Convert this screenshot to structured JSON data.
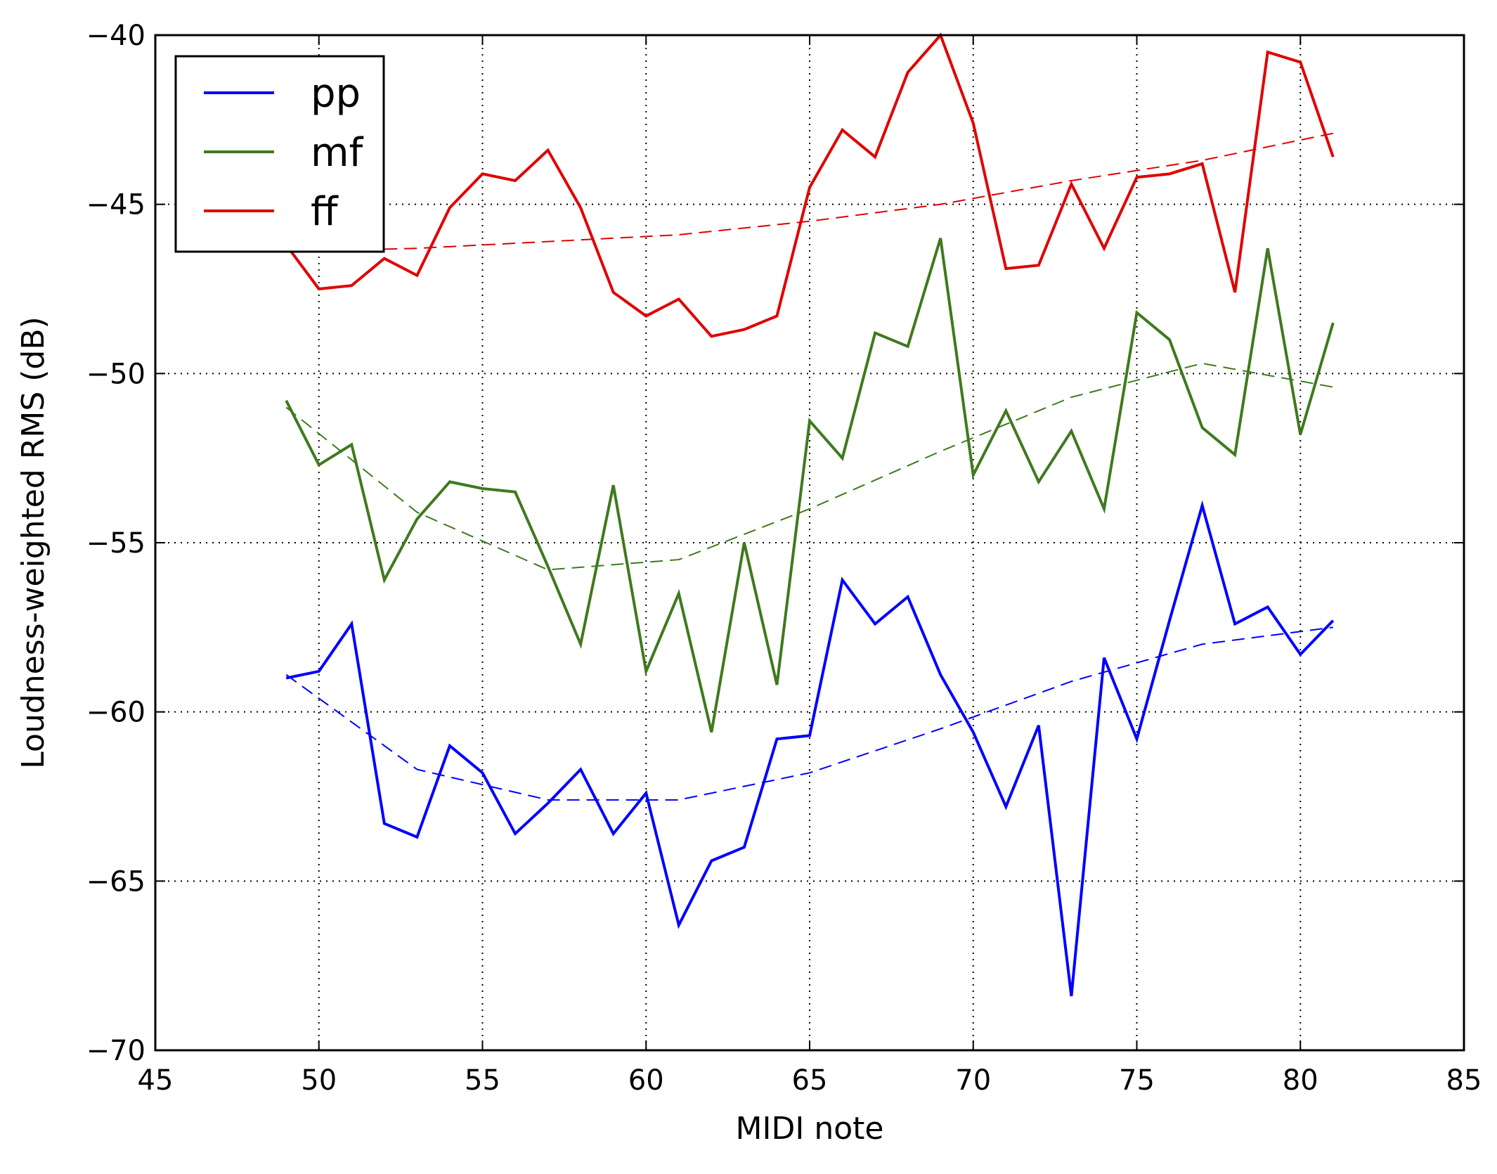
{
  "chart_data": {
    "type": "line",
    "xlabel": "MIDI note",
    "ylabel": "Loudness-weighted RMS (dB)",
    "xlim": [
      45,
      85
    ],
    "ylim": [
      -70,
      -40
    ],
    "xticks": [
      45,
      50,
      55,
      60,
      65,
      70,
      75,
      80,
      85
    ],
    "yticks": [
      -40,
      -45,
      -50,
      -55,
      -60,
      -65,
      -70
    ],
    "xtick_labels": [
      "45",
      "50",
      "55",
      "60",
      "65",
      "70",
      "75",
      "80",
      "85"
    ],
    "ytick_labels": [
      "−40",
      "−45",
      "−50",
      "−55",
      "−60",
      "−65",
      "−70"
    ],
    "grid": true,
    "legend_position": "top-left",
    "x": [
      49,
      50,
      51,
      52,
      53,
      54,
      55,
      56,
      57,
      58,
      59,
      60,
      61,
      62,
      63,
      64,
      65,
      66,
      67,
      68,
      69,
      70,
      71,
      72,
      73,
      74,
      75,
      76,
      77,
      78,
      79,
      80,
      81
    ],
    "series": [
      {
        "name": "pp",
        "color": "#0000ff",
        "values": [
          -59.0,
          -58.8,
          -57.4,
          -63.3,
          -63.7,
          -61.0,
          -61.8,
          -63.6,
          -62.7,
          -61.7,
          -63.6,
          -62.4,
          -66.3,
          -64.4,
          -64.0,
          -60.8,
          -60.7,
          -56.1,
          -57.4,
          -56.6,
          -58.9,
          -60.6,
          -62.8,
          -60.4,
          -68.4,
          -58.4,
          -60.8,
          -57.3,
          -53.9,
          -57.4,
          -56.9,
          -58.3,
          -57.3
        ]
      },
      {
        "name": "mf",
        "color": "#3e7a1e",
        "values": [
          -50.8,
          -52.7,
          -52.1,
          -56.1,
          -54.3,
          -53.2,
          -53.4,
          -53.5,
          -55.7,
          -58.0,
          -53.3,
          -58.8,
          -56.5,
          -60.6,
          -55.0,
          -59.2,
          -51.4,
          -52.5,
          -48.8,
          -49.2,
          -46.0,
          -53.0,
          -51.1,
          -53.2,
          -51.7,
          -54.0,
          -48.2,
          -49.0,
          -51.6,
          -52.4,
          -46.3,
          -51.8,
          -48.5
        ]
      },
      {
        "name": "ff",
        "color": "#e00000",
        "values": [
          -46.2,
          -47.5,
          -47.4,
          -46.6,
          -47.1,
          -45.1,
          -44.1,
          -44.3,
          -43.4,
          -45.1,
          -47.6,
          -48.3,
          -47.8,
          -48.9,
          -48.7,
          -48.3,
          -44.5,
          -42.8,
          -43.6,
          -41.1,
          -40.0,
          -42.6,
          -46.9,
          -46.8,
          -44.4,
          -46.3,
          -44.2,
          -44.1,
          -43.8,
          -47.6,
          -40.5,
          -40.8,
          -43.6
        ]
      }
    ],
    "trend_lines": [
      {
        "series": "pp",
        "color": "#0000ff",
        "x": [
          49,
          53,
          57,
          61,
          65,
          69,
          73,
          77,
          81
        ],
        "values": [
          -58.9,
          -61.7,
          -62.6,
          -62.6,
          -61.8,
          -60.5,
          -59.1,
          -58.0,
          -57.5
        ]
      },
      {
        "series": "mf",
        "color": "#3e7a1e",
        "x": [
          49,
          53,
          57,
          61,
          65,
          69,
          73,
          77,
          81
        ],
        "values": [
          -51.0,
          -54.1,
          -55.8,
          -55.5,
          -54.0,
          -52.3,
          -50.7,
          -49.7,
          -50.4
        ]
      },
      {
        "series": "ff",
        "color": "#e00000",
        "x": [
          49,
          53,
          57,
          61,
          65,
          69,
          73,
          77,
          81
        ],
        "values": [
          -46.4,
          -46.3,
          -46.1,
          -45.9,
          -45.5,
          -45.0,
          -44.3,
          -43.7,
          -42.9
        ]
      }
    ]
  }
}
